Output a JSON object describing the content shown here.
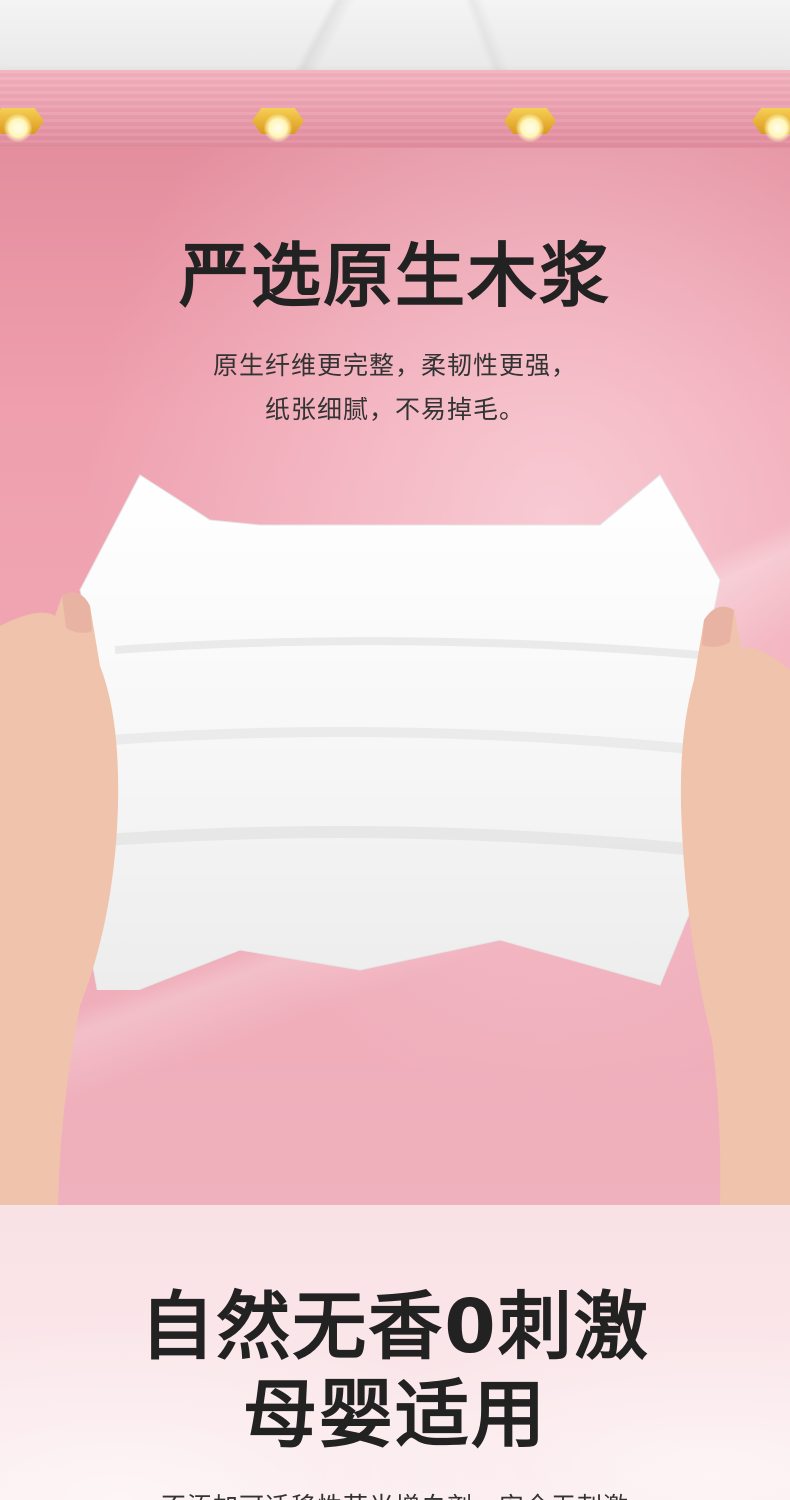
{
  "hero": {
    "title": "严选原生木浆",
    "subtitle_line1": "原生纤维更完整，柔韧性更强，",
    "subtitle_line2": "纸张细腻，不易掉毛。"
  },
  "section2": {
    "title_line1": "自然无香0刺激",
    "title_line2": "母婴适用",
    "subtitle": "不添加可迁移性荧光增白剂，安全无刺激"
  },
  "colors": {
    "hero_pink": "#ef9fae",
    "lightbar_pink": "#ea9fae",
    "lamp_gold": "#f7cf55",
    "text_dark": "#222222"
  }
}
